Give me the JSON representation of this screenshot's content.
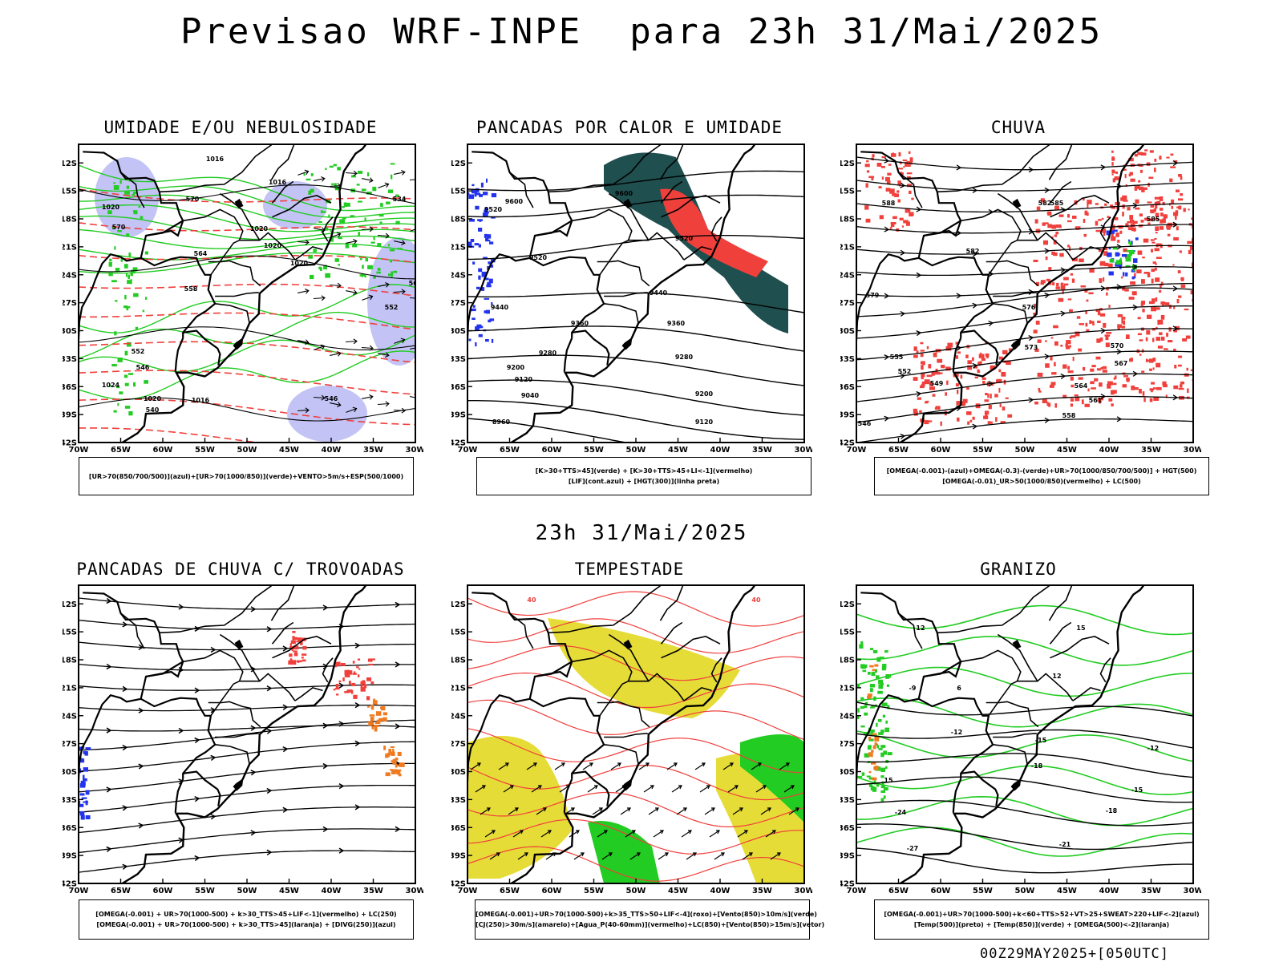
{
  "title": "Previsao WRF-INPE  para 23h 31/Mai/2025",
  "mid_title": "23h 31/Mai/2025",
  "footer": "00Z29MAY2025+[050UTC]",
  "axes": {
    "lat_labels": [
      "12S",
      "15S",
      "18S",
      "21S",
      "24S",
      "27S",
      "30S",
      "33S",
      "36S",
      "39S",
      "42S"
    ],
    "lon_labels": [
      "70W",
      "65W",
      "60W",
      "55W",
      "50W",
      "45W",
      "40W",
      "35W",
      "30W"
    ]
  },
  "panels": [
    {
      "id": "umidade",
      "title": "UMIDADE E/OU NEBULOSIDADE",
      "legend": [
        "[UR>70(850/700/500)](azul)+[UR>70(1000/850)](verde)+VENTO>5m/s+ESP(500/1000)"
      ],
      "contour_labels": [
        "1016",
        "1016",
        "1020",
        "1020",
        "1020",
        "1020",
        "1024",
        "1020",
        "1016",
        "570",
        "570",
        "564",
        "558",
        "552",
        "546",
        "540",
        "534",
        "552",
        "546",
        "564"
      ]
    },
    {
      "id": "pancadas-calor",
      "title": "PANCADAS POR CALOR E UMIDADE",
      "legend": [
        "[K>30+TTS>45](verde) + [K>30+TTS>45+LI<-1](vermelho)",
        "[LIF](cont.azul) + [HGT(300)](linha preta)"
      ],
      "contour_labels": [
        "9600",
        "9520",
        "9600",
        "9520",
        "9520",
        "9440",
        "9440",
        "9360",
        "9360",
        "9280",
        "9280",
        "9200",
        "9120",
        "9040",
        "9200",
        "8960",
        "9120"
      ]
    },
    {
      "id": "chuva",
      "title": "CHUVA",
      "legend": [
        "[OMEGA(-0.001)-(azul)+OMEGA(-0.3)-(verde)+UR>70(1000/850/700/500)] + HGT(500)",
        "[OMEGA(-0.01)_UR>50(1000/850)(vermelho) + LC(500)"
      ],
      "contour_labels": [
        "585",
        "588",
        "582",
        "582",
        "579",
        "576",
        "573",
        "570",
        "567",
        "564",
        "561",
        "558",
        "555",
        "552",
        "549",
        "546",
        "585"
      ]
    },
    {
      "id": "trovoadas",
      "title": "PANCADAS DE CHUVA C/ TROVOADAS",
      "legend": [
        "[OMEGA(-0.001) + UR>70(1000-500) + k>30_TTS>45+LIF<-1](vermelho) + LC(250)",
        "[OMEGA(-0.001) + UR>70(1000-500) + k>30_TTS>45](laranja) + [DIVG(250)](azul)"
      ],
      "contour_labels": []
    },
    {
      "id": "tempestade",
      "title": "TEMPESTADE",
      "legend": [
        "[OMEGA(-0.001)+UR>70(1000-500)+k>35_TTS>50+LIF<-4](roxo)+[Vento(850)>10m/s](verde)",
        "[CJ(250)>30m/s](amarelo)+[Agua_P(40-60mm)](vermelho)+LC(850)+[Vento(850)>15m/s](vetor)"
      ],
      "contour_labels": [
        "40",
        "40"
      ]
    },
    {
      "id": "granizo",
      "title": "GRANIZO",
      "legend": [
        "[OMEGA(-0.001)+UR>70(1000-500)+k<60+TTS>52+VT>25+SWEAT>220+LIF<-2](azul)",
        "[Temp(500)](preto) + [Temp(850)](verde) + [OMEGA(500)<-2](laranja)"
      ],
      "contour_labels": [
        "-9",
        "-12",
        "-15",
        "-12",
        "-18",
        "-18",
        "-21",
        "-24",
        "-27",
        "-15",
        "12",
        "12",
        "15",
        "15",
        "6"
      ]
    }
  ],
  "colors": {
    "red": "#f0403c",
    "green": "#22cc22",
    "blue": "#2233ee",
    "lavender": "#b9b9f5",
    "darkteal": "#1f4f4f",
    "yellow": "#e6dc37",
    "orange": "#f07a20"
  }
}
